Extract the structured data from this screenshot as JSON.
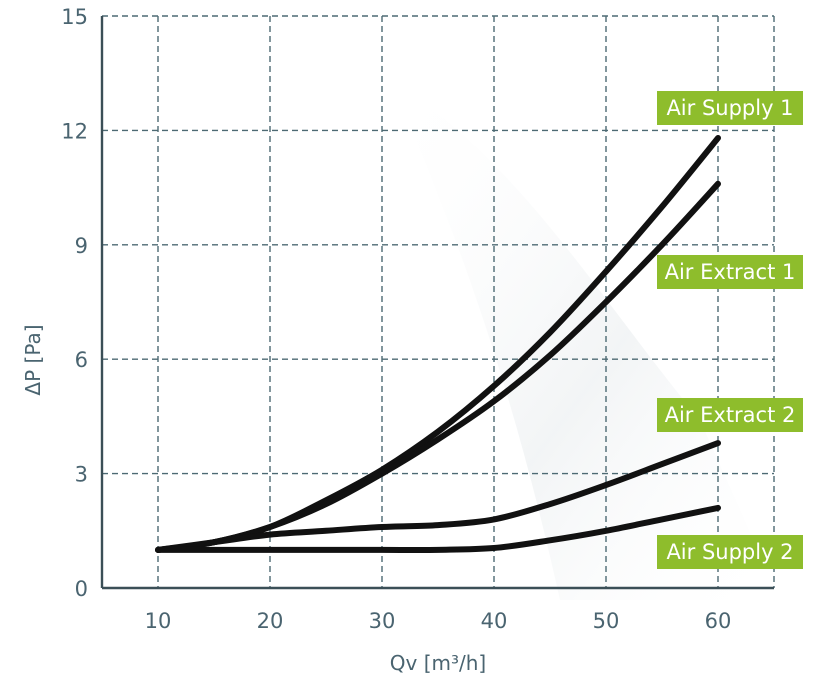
{
  "chart_data": {
    "type": "line",
    "title": "",
    "xlabel": "Qv [m³/h]",
    "ylabel": "ΔP [Pa]",
    "xlim": [
      5,
      65
    ],
    "ylim": [
      0,
      15
    ],
    "xticks": [
      10,
      20,
      30,
      40,
      50,
      60
    ],
    "yticks": [
      0,
      3,
      6,
      9,
      12,
      15
    ],
    "grid": true,
    "series": [
      {
        "name": "Air Supply 1",
        "x": [
          10,
          15,
          20,
          25,
          30,
          35,
          40,
          45,
          50,
          55,
          60
        ],
        "y": [
          1.0,
          1.2,
          1.6,
          2.3,
          3.1,
          4.1,
          5.3,
          6.7,
          8.3,
          10.0,
          11.8
        ]
      },
      {
        "name": "Air Extract 1",
        "x": [
          10,
          15,
          20,
          25,
          30,
          35,
          40,
          45,
          50,
          55,
          60
        ],
        "y": [
          1.0,
          1.2,
          1.6,
          2.2,
          3.0,
          3.9,
          4.9,
          6.1,
          7.5,
          9.0,
          10.6
        ]
      },
      {
        "name": "Air Extract 2",
        "x": [
          10,
          15,
          20,
          25,
          30,
          35,
          40,
          45,
          50,
          55,
          60
        ],
        "y": [
          1.0,
          1.2,
          1.4,
          1.5,
          1.6,
          1.65,
          1.8,
          2.2,
          2.7,
          3.25,
          3.8
        ]
      },
      {
        "name": "Air Supply 2",
        "x": [
          10,
          15,
          20,
          25,
          30,
          35,
          40,
          45,
          50,
          55,
          60
        ],
        "y": [
          1.0,
          1.0,
          1.0,
          1.0,
          1.0,
          1.0,
          1.05,
          1.25,
          1.5,
          1.8,
          2.1
        ]
      }
    ]
  }
}
